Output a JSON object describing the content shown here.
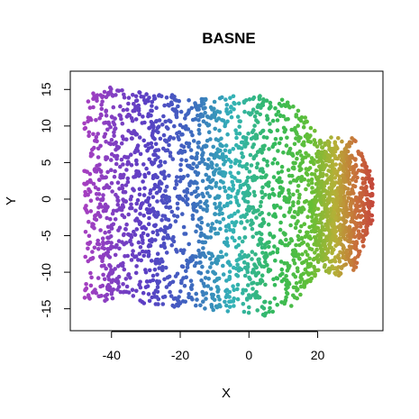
{
  "chart_data": {
    "type": "scatter",
    "title": "BASNE",
    "xlabel": "X",
    "ylabel": "Y",
    "xlim": [
      -52,
      39
    ],
    "ylim": [
      -18,
      17.5
    ],
    "x_ticks": [
      -40,
      -20,
      0,
      20
    ],
    "x_tick_labels": [
      "-40",
      "-20",
      "0",
      "20"
    ],
    "y_ticks": [
      -15,
      -10,
      -5,
      0,
      5,
      10,
      15
    ],
    "y_tick_labels": [
      "-15",
      "-10",
      "-5",
      "0",
      "5",
      "10",
      "15"
    ],
    "grid": false,
    "legend": "none",
    "color_scale": {
      "description": "points colored by X position",
      "stops": [
        {
          "x": -48,
          "color": "#a63fc0"
        },
        {
          "x": -30,
          "color": "#5a3fc4"
        },
        {
          "x": -18,
          "color": "#3f63c0"
        },
        {
          "x": -5,
          "color": "#33b2b7"
        },
        {
          "x": 8,
          "color": "#35ba57"
        },
        {
          "x": 18,
          "color": "#64bf35"
        },
        {
          "x": 25,
          "color": "#b5b037"
        },
        {
          "x": 31,
          "color": "#c8713a"
        },
        {
          "x": 36,
          "color": "#c4473a"
        }
      ]
    },
    "cloud_shape": {
      "x_range": [
        -48,
        36
      ],
      "y_top_edge": [
        [
          -48,
          14
        ],
        [
          -42,
          15.5
        ],
        [
          -30,
          14.5
        ],
        [
          -15,
          14
        ],
        [
          -5,
          14.2
        ],
        [
          5,
          14.2
        ],
        [
          12,
          14
        ],
        [
          20,
          9
        ],
        [
          25,
          4
        ],
        [
          30,
          9
        ],
        [
          36,
          3
        ]
      ],
      "y_bottom_edge": [
        [
          -48,
          -13.5
        ],
        [
          -42,
          -14
        ],
        [
          -30,
          -14.5
        ],
        [
          -15,
          -15
        ],
        [
          -5,
          -15.5
        ],
        [
          5,
          -16
        ],
        [
          12,
          -15
        ],
        [
          20,
          -10
        ],
        [
          25,
          -6
        ],
        [
          30,
          -11
        ],
        [
          36,
          -3
        ]
      ],
      "dense_core": {
        "x": 25,
        "y": -1
      }
    },
    "point_count": 3000
  }
}
